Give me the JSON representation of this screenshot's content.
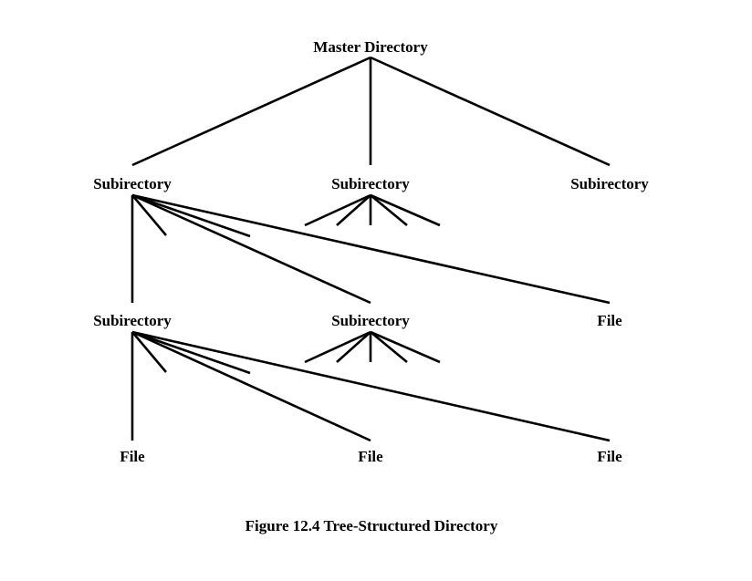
{
  "nodes": {
    "root": "Master Directory",
    "level1_left": "Subirectory",
    "level1_middle": "Subirectory",
    "level1_right": "Subirectory",
    "level2_left": "Subirectory",
    "level2_middle": "Subirectory",
    "level2_right": "File",
    "level3_left": "File",
    "level3_middle": "File",
    "level3_right": "File"
  },
  "caption": "Figure 12.4  Tree-Structured Directory",
  "colors": {
    "line": "#000000",
    "text": "#000000",
    "background": "#ffffff"
  }
}
